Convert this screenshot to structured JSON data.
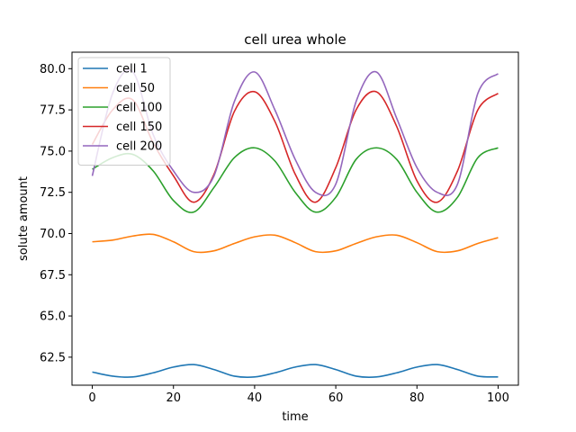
{
  "chart_data": {
    "type": "line",
    "title": "cell urea whole",
    "xlabel": "time",
    "ylabel": "solute amount",
    "xlim": [
      -5,
      105
    ],
    "ylim": [
      60.8,
      81.0
    ],
    "xticks": [
      0,
      20,
      40,
      60,
      80,
      100
    ],
    "yticks": [
      62.5,
      65.0,
      67.5,
      70.0,
      72.5,
      75.0,
      77.5,
      80.0
    ],
    "ytick_labels": [
      "62.5",
      "65.0",
      "67.5",
      "70.0",
      "72.5",
      "75.0",
      "77.5",
      "80.0"
    ],
    "legend_position": "top-left",
    "grid": false,
    "series": [
      {
        "name": "cell 1",
        "color": "#1f77b4",
        "x": [
          0,
          5,
          10,
          15,
          20,
          25,
          30,
          35,
          40,
          45,
          50,
          55,
          60,
          65,
          70,
          75,
          80,
          85,
          90,
          95,
          100
        ],
        "y": [
          61.6,
          61.35,
          61.3,
          61.55,
          61.9,
          62.05,
          61.75,
          61.35,
          61.3,
          61.55,
          61.9,
          62.05,
          61.75,
          61.35,
          61.3,
          61.55,
          61.9,
          62.05,
          61.75,
          61.35,
          61.3
        ]
      },
      {
        "name": "cell 50",
        "color": "#ff7f0e",
        "x": [
          0,
          5,
          10,
          15,
          20,
          25,
          30,
          35,
          40,
          45,
          50,
          55,
          60,
          65,
          70,
          75,
          80,
          85,
          90,
          95,
          100
        ],
        "y": [
          69.5,
          69.6,
          69.85,
          69.95,
          69.5,
          68.9,
          68.95,
          69.4,
          69.8,
          69.9,
          69.45,
          68.9,
          68.95,
          69.4,
          69.8,
          69.9,
          69.45,
          68.9,
          68.95,
          69.4,
          69.75
        ]
      },
      {
        "name": "cell 100",
        "color": "#2ca02c",
        "x": [
          0,
          5,
          10,
          15,
          20,
          25,
          30,
          35,
          40,
          45,
          50,
          55,
          60,
          65,
          70,
          75,
          80,
          85,
          90,
          95,
          100
        ],
        "y": [
          73.9,
          74.6,
          74.8,
          73.8,
          72.0,
          71.3,
          72.8,
          74.6,
          75.2,
          74.4,
          72.5,
          71.3,
          72.2,
          74.5,
          75.2,
          74.5,
          72.5,
          71.3,
          72.2,
          74.6,
          75.2
        ]
      },
      {
        "name": "cell 150",
        "color": "#d62728",
        "x": [
          0,
          5,
          10,
          15,
          20,
          25,
          30,
          35,
          40,
          45,
          50,
          55,
          60,
          65,
          70,
          75,
          80,
          85,
          90,
          95,
          100
        ],
        "y": [
          75.4,
          77.5,
          78.1,
          75.5,
          73.5,
          71.9,
          73.6,
          77.4,
          78.6,
          76.8,
          73.6,
          71.9,
          74.0,
          77.5,
          78.6,
          76.5,
          73.2,
          71.9,
          73.8,
          77.5,
          78.5
        ]
      },
      {
        "name": "cell 200",
        "color": "#9467bd",
        "x": [
          0,
          5,
          10,
          15,
          20,
          25,
          30,
          35,
          40,
          45,
          50,
          55,
          60,
          65,
          70,
          75,
          80,
          85,
          90,
          95,
          100
        ],
        "y": [
          73.5,
          78.5,
          79.8,
          76.0,
          73.8,
          72.5,
          73.5,
          78.0,
          79.8,
          77.5,
          74.5,
          72.5,
          73.0,
          78.0,
          79.8,
          77.0,
          74.0,
          72.5,
          73.0,
          78.5,
          79.7
        ]
      }
    ]
  }
}
